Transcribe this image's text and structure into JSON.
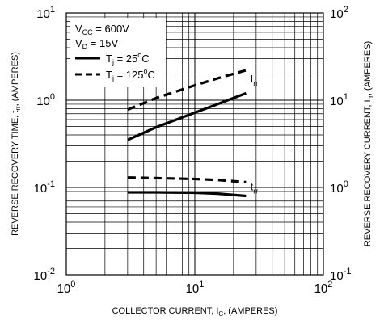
{
  "chart_data": {
    "type": "line",
    "x_axis": {
      "label_prefix": "COLLECTOR CURRENT, I",
      "label_sub": "C",
      "label_suffix": ", (AMPERES)",
      "scale": "log",
      "range": [
        1,
        100
      ],
      "ticks": [
        {
          "base": "10",
          "exp": "0"
        },
        {
          "base": "10",
          "exp": "1"
        },
        {
          "base": "10",
          "exp": "2"
        }
      ]
    },
    "y_left_axis": {
      "label_prefix": "REVERSE RECOVERY TIME, t",
      "label_sub": "rr",
      "label_suffix": ", (AMPERES)",
      "scale": "log",
      "range": [
        0.01,
        10
      ],
      "ticks": [
        {
          "base": "10",
          "exp": "-2"
        },
        {
          "base": "10",
          "exp": "-1"
        },
        {
          "base": "10",
          "exp": "0"
        },
        {
          "base": "10",
          "exp": "1"
        }
      ]
    },
    "y_right_axis": {
      "label_prefix": "REVERSE RECOVERY CURRENT, I",
      "label_sub": "rr",
      "label_suffix": ", (AMPERES)",
      "scale": "log",
      "range": [
        0.1,
        100
      ],
      "ticks": [
        {
          "base": "10",
          "exp": "-1"
        },
        {
          "base": "10",
          "exp": "0"
        },
        {
          "base": "10",
          "exp": "1"
        },
        {
          "base": "10",
          "exp": "2"
        }
      ]
    },
    "grid": true,
    "conditions": [
      {
        "main": "V",
        "sub": "CC",
        "rest": " = 600V"
      },
      {
        "main": "V",
        "sub": "D",
        "rest": " = 15V"
      }
    ],
    "legend": [
      {
        "style": "solid",
        "main": "T",
        "sub": "j",
        "rest_a": " = 25",
        "sup": "o",
        "rest_b": "C"
      },
      {
        "style": "dashed",
        "main": "T",
        "sub": "j",
        "rest_a": " = 125",
        "sup": "o",
        "rest_b": "C"
      }
    ],
    "series": [
      {
        "curve": "Irr",
        "style": "dashed",
        "axis": "right",
        "x": [
          3,
          5,
          10,
          15,
          25
        ],
        "y": [
          7.8,
          10.6,
          14.8,
          17.8,
          22
        ]
      },
      {
        "curve": "Irr",
        "style": "solid",
        "axis": "right",
        "x": [
          3,
          5,
          10,
          15,
          25
        ],
        "y": [
          3.5,
          4.9,
          7.2,
          9.0,
          12
        ]
      },
      {
        "curve": "trr",
        "style": "dashed",
        "axis": "left",
        "x": [
          3,
          5,
          10,
          15,
          25
        ],
        "y": [
          0.13,
          0.128,
          0.125,
          0.122,
          0.115
        ]
      },
      {
        "curve": "trr",
        "style": "solid",
        "axis": "left",
        "x": [
          3,
          5,
          10,
          15,
          25
        ],
        "y": [
          0.088,
          0.088,
          0.087,
          0.085,
          0.08
        ]
      }
    ],
    "annotations": [
      {
        "main": "I",
        "sub": "rr",
        "x": 27,
        "y_right": 16
      },
      {
        "main": "t",
        "sub": "rr",
        "x": 27,
        "y_left": 0.093
      }
    ]
  }
}
